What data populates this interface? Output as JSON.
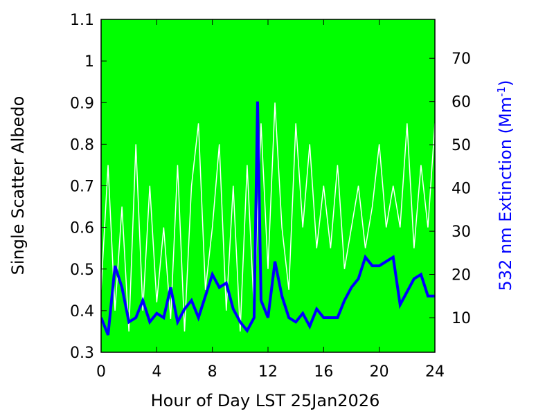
{
  "chart_data": {
    "type": "line",
    "title": "",
    "xlabel": "Hour of Day LST 25Jan2026",
    "ylabel": "Single Scatter Albedo",
    "y2label_main": "532 nm Extinction (Mm",
    "y2label_sup": "-1",
    "y2label_end": ")",
    "xlim": [
      0,
      24
    ],
    "ylim": [
      0.3,
      1.1
    ],
    "y2lim": [
      2,
      79
    ],
    "xticks": [
      "0",
      "4",
      "8",
      "12",
      "16",
      "20",
      "24"
    ],
    "yticks": [
      "0.3",
      "0.4",
      "0.5",
      "0.6",
      "0.7",
      "0.8",
      "0.9",
      "1",
      "1.1"
    ],
    "y2ticks": [
      "10",
      "20",
      "30",
      "40",
      "50",
      "60",
      "70"
    ],
    "background": "#00ff00",
    "series": [
      {
        "name": "Single Scatter Albedo",
        "axis": "left",
        "color": "#ffffff",
        "x": [
          0,
          0.5,
          1,
          1.5,
          2,
          2.5,
          3,
          3.5,
          4,
          4.5,
          5,
          5.5,
          6,
          6.5,
          7,
          7.5,
          8,
          8.5,
          9,
          9.5,
          10,
          10.5,
          11,
          11.5,
          12,
          12.5,
          13,
          13.5,
          14,
          14.5,
          15,
          15.5,
          16,
          16.5,
          17,
          17.5,
          18,
          18.5,
          19,
          19.5,
          20,
          20.5,
          21,
          21.5,
          22,
          22.5,
          23,
          23.5,
          24
        ],
        "values": [
          0.45,
          0.75,
          0.4,
          0.65,
          0.35,
          0.8,
          0.4,
          0.7,
          0.42,
          0.6,
          0.38,
          0.75,
          0.35,
          0.7,
          0.85,
          0.45,
          0.6,
          0.8,
          0.4,
          0.7,
          0.35,
          0.75,
          0.4,
          0.85,
          0.5,
          0.9,
          0.6,
          0.45,
          0.85,
          0.6,
          0.8,
          0.55,
          0.7,
          0.55,
          0.75,
          0.5,
          0.6,
          0.7,
          0.55,
          0.65,
          0.8,
          0.6,
          0.7,
          0.6,
          0.85,
          0.55,
          0.75,
          0.6,
          0.85
        ]
      },
      {
        "name": "532 nm Extinction",
        "axis": "right",
        "color": "#0000ff",
        "x": [
          0,
          0.5,
          1,
          1.5,
          2,
          2.5,
          3,
          3.5,
          4,
          4.5,
          5,
          5.5,
          6,
          6.5,
          7,
          7.5,
          8,
          8.5,
          9,
          9.5,
          10,
          10.5,
          11,
          11.25,
          11.5,
          12,
          12.5,
          13,
          13.5,
          14,
          14.5,
          15,
          15.5,
          16,
          16.5,
          17,
          17.5,
          18,
          18.5,
          19,
          19.5,
          20,
          20.5,
          21,
          21.5,
          22,
          22.5,
          23,
          23.5,
          24
        ],
        "values": [
          10,
          6,
          22,
          17,
          9,
          10,
          14,
          9,
          11,
          10,
          17,
          9,
          12,
          14,
          10,
          15,
          20,
          17,
          18,
          12,
          9,
          7,
          10,
          60,
          14,
          10,
          23,
          15,
          10,
          9,
          11,
          8,
          12,
          10,
          10,
          10,
          14,
          17,
          19,
          24,
          22,
          22,
          23,
          24,
          13,
          16,
          19,
          20,
          15,
          15
        ]
      }
    ]
  }
}
